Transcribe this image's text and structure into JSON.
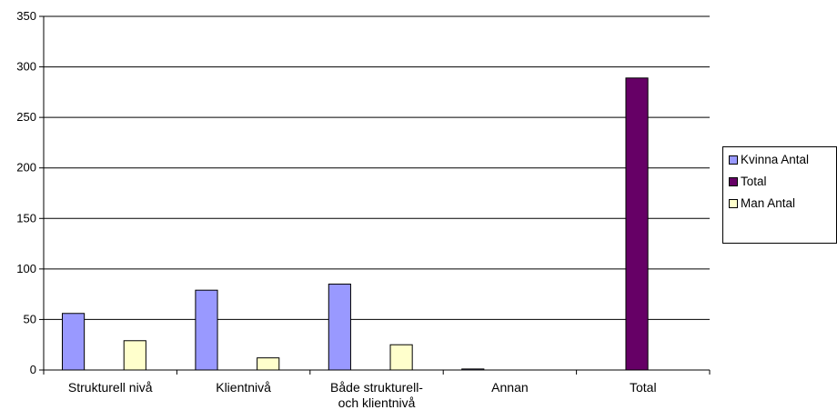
{
  "chart_data": {
    "type": "bar",
    "categories": [
      [
        "Strukturell nivå"
      ],
      [
        "Klientnivå"
      ],
      [
        "Både strukturell-",
        "och klientnivå"
      ],
      [
        "Annan"
      ],
      [
        "Total"
      ]
    ],
    "series": [
      {
        "name": "Kvinna Antal",
        "color": "#9999FF",
        "values": [
          56,
          79,
          85,
          1,
          0
        ]
      },
      {
        "name": "Total",
        "color": "#660066",
        "values": [
          0,
          0,
          0,
          0,
          289
        ]
      },
      {
        "name": "Man Antal",
        "color": "#FFFFCC",
        "values": [
          29,
          12,
          25,
          0,
          0
        ]
      }
    ],
    "ylim": [
      0,
      350
    ],
    "yticks": [
      0,
      50,
      100,
      150,
      200,
      250,
      300,
      350
    ],
    "legend_position": "right",
    "grid": true
  }
}
